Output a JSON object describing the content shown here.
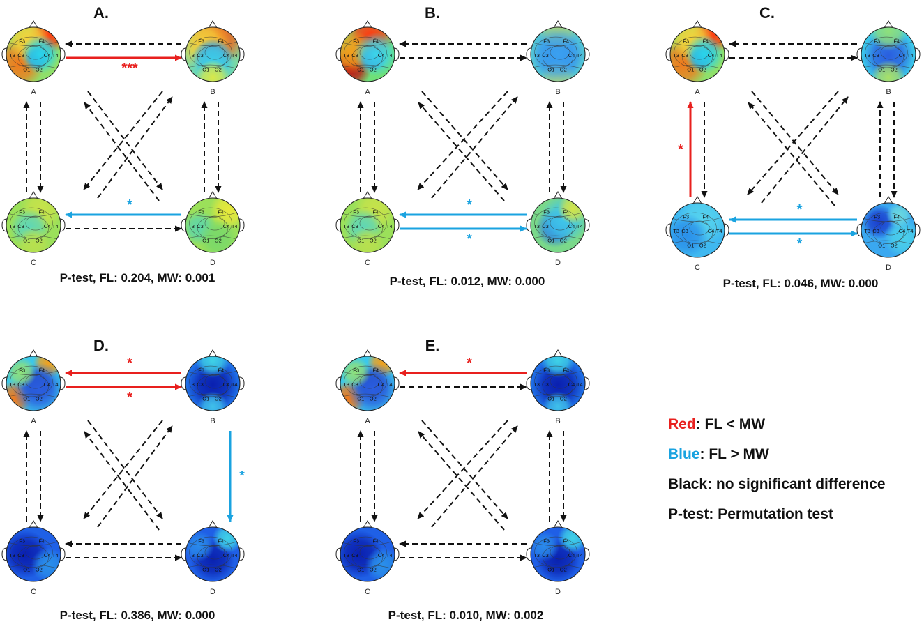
{
  "colors": {
    "red": "#e8201e",
    "blue": "#1aa3e0",
    "black": "#111111"
  },
  "panels": [
    {
      "title": "A.",
      "ptest": "P-test, FL: 0.204, MW: 0.001",
      "nodes": {
        "A": {
          "label": "A",
          "map": "warm-left"
        },
        "B": {
          "label": "B",
          "map": "warm-top"
        },
        "C": {
          "label": "C",
          "map": "green"
        },
        "D": {
          "label": "D",
          "map": "green-yellow"
        }
      },
      "arrows": {
        "BA": {
          "style": "black",
          "star": ""
        },
        "AB": {
          "style": "red",
          "star": "***"
        },
        "CA": {
          "style": "black",
          "star": ""
        },
        "AC": {
          "style": "black",
          "star": ""
        },
        "BD": {
          "style": "black",
          "star": ""
        },
        "DB": {
          "style": "black",
          "star": ""
        },
        "DC": {
          "style": "blue",
          "star": "*"
        },
        "CD": {
          "style": "black",
          "star": ""
        },
        "AD": {
          "style": "black",
          "star": ""
        },
        "DA": {
          "style": "black",
          "star": ""
        },
        "BC": {
          "style": "black",
          "star": ""
        },
        "CB": {
          "style": "black",
          "star": ""
        }
      }
    },
    {
      "title": "B.",
      "ptest": "P-test, FL: 0.012, MW: 0.000",
      "nodes": {
        "A": {
          "label": "A",
          "map": "hot-left"
        },
        "B": {
          "label": "B",
          "map": "cyan-band"
        },
        "C": {
          "label": "C",
          "map": "green"
        },
        "D": {
          "label": "D",
          "map": "green-blue"
        }
      },
      "arrows": {
        "BA": {
          "style": "black",
          "star": ""
        },
        "AB": {
          "style": "black",
          "star": ""
        },
        "CA": {
          "style": "black",
          "star": ""
        },
        "AC": {
          "style": "black",
          "star": ""
        },
        "BD": {
          "style": "black",
          "star": ""
        },
        "DB": {
          "style": "black",
          "star": ""
        },
        "DC": {
          "style": "blue",
          "star": "*"
        },
        "CD": {
          "style": "blue",
          "star": "*"
        },
        "AD": {
          "style": "black",
          "star": ""
        },
        "DA": {
          "style": "black",
          "star": ""
        },
        "BC": {
          "style": "black",
          "star": ""
        },
        "CB": {
          "style": "black",
          "star": ""
        }
      }
    },
    {
      "title": "C.",
      "ptest": "P-test, FL: 0.046, MW: 0.000",
      "nodes": {
        "A": {
          "label": "A",
          "map": "warm-left"
        },
        "B": {
          "label": "B",
          "map": "blue-band"
        },
        "C": {
          "label": "C",
          "map": "light-blue"
        },
        "D": {
          "label": "D",
          "map": "blue-mid"
        }
      },
      "arrows": {
        "BA": {
          "style": "black",
          "star": ""
        },
        "AB": {
          "style": "black",
          "star": ""
        },
        "CA": {
          "style": "red",
          "star": "*"
        },
        "AC": {
          "style": "black",
          "star": ""
        },
        "BD": {
          "style": "black",
          "star": ""
        },
        "DB": {
          "style": "black",
          "star": ""
        },
        "DC": {
          "style": "blue",
          "star": "*"
        },
        "CD": {
          "style": "blue",
          "star": "*"
        },
        "AD": {
          "style": "black",
          "star": ""
        },
        "DA": {
          "style": "black",
          "star": ""
        },
        "BC": {
          "style": "black",
          "star": ""
        },
        "CB": {
          "style": "black",
          "star": ""
        }
      }
    },
    {
      "title": "D.",
      "ptest": "P-test, FL: 0.386, MW: 0.000",
      "nodes": {
        "A": {
          "label": "A",
          "map": "warm-dark-center"
        },
        "B": {
          "label": "B",
          "map": "deep-blue-band"
        },
        "C": {
          "label": "C",
          "map": "deep-blue"
        },
        "D": {
          "label": "D",
          "map": "deep-blue-cyan"
        }
      },
      "arrows": {
        "BA": {
          "style": "red",
          "star": "*"
        },
        "AB": {
          "style": "red",
          "star": "*"
        },
        "CA": {
          "style": "black",
          "star": ""
        },
        "AC": {
          "style": "black",
          "star": ""
        },
        "BD": {
          "style": "blue",
          "star": "*"
        },
        "DB": {
          "style": "none",
          "star": ""
        },
        "DC": {
          "style": "black",
          "star": ""
        },
        "CD": {
          "style": "black",
          "star": ""
        },
        "AD": {
          "style": "black",
          "star": ""
        },
        "DA": {
          "style": "black",
          "star": ""
        },
        "BC": {
          "style": "black",
          "star": ""
        },
        "CB": {
          "style": "black",
          "star": ""
        }
      }
    },
    {
      "title": "E.",
      "ptest": "P-test, FL: 0.010, MW: 0.002",
      "nodes": {
        "A": {
          "label": "A",
          "map": "warm-dark-center"
        },
        "B": {
          "label": "B",
          "map": "deep-blue-band"
        },
        "C": {
          "label": "C",
          "map": "deep-blue"
        },
        "D": {
          "label": "D",
          "map": "deep-blue-cyan"
        }
      },
      "arrows": {
        "BA": {
          "style": "red",
          "star": "*"
        },
        "AB": {
          "style": "black",
          "star": ""
        },
        "CA": {
          "style": "black",
          "star": ""
        },
        "AC": {
          "style": "black",
          "star": ""
        },
        "BD": {
          "style": "black",
          "star": ""
        },
        "DB": {
          "style": "black",
          "star": ""
        },
        "DC": {
          "style": "black",
          "star": ""
        },
        "CD": {
          "style": "black",
          "star": ""
        },
        "AD": {
          "style": "black",
          "star": ""
        },
        "DA": {
          "style": "black",
          "star": ""
        },
        "BC": {
          "style": "black",
          "star": ""
        },
        "CB": {
          "style": "black",
          "star": ""
        }
      }
    }
  ],
  "electrodes": [
    "F3",
    "F4",
    "T3",
    "C3",
    "C4",
    "T4",
    "O1",
    "O2"
  ],
  "legend": [
    {
      "key": "Red",
      "rest": ": FL < MW",
      "color": "red"
    },
    {
      "key": "Blue",
      "rest": ": FL > MW",
      "color": "blue"
    },
    {
      "key": "Black",
      "rest": ": no significant difference",
      "color": "black"
    },
    {
      "key": "P-test",
      "rest": ": Permutation test",
      "color": "black"
    }
  ]
}
